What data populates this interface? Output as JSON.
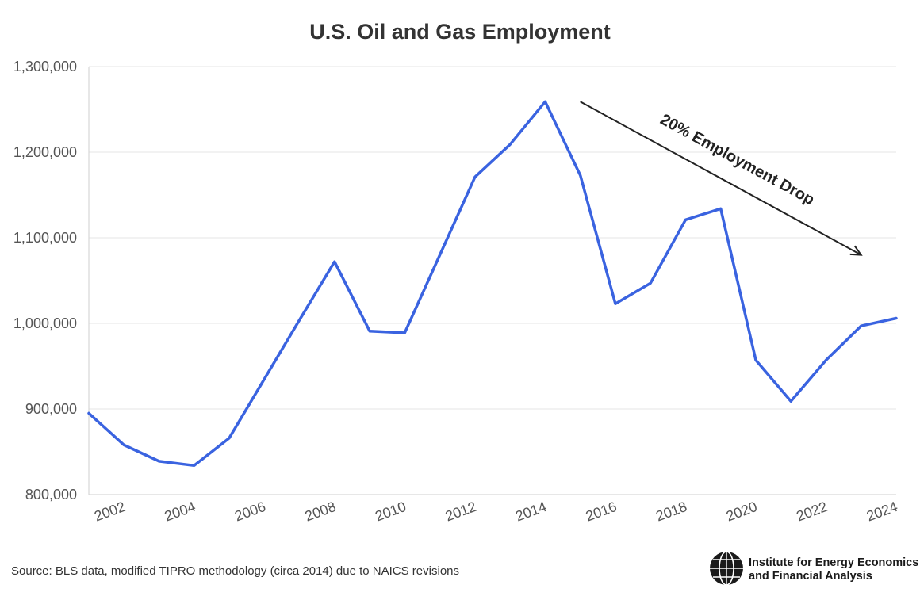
{
  "chart_data": {
    "type": "line",
    "title": "U.S. Oil and Gas Employment",
    "xlabel": "",
    "ylabel": "",
    "x": [
      2001,
      2002,
      2003,
      2004,
      2005,
      2006,
      2007,
      2008,
      2009,
      2010,
      2011,
      2012,
      2013,
      2014,
      2015,
      2016,
      2017,
      2018,
      2019,
      2020,
      2021,
      2022,
      2023,
      2024
    ],
    "series": [
      {
        "name": "",
        "color": "#3a63e0",
        "values": [
          895000,
          858000,
          839000,
          834000,
          866000,
          935000,
          1004000,
          1072000,
          991000,
          989000,
          1080000,
          1171000,
          1209000,
          1259000,
          1173000,
          1023000,
          1047000,
          1121000,
          1134000,
          957000,
          909000,
          957000,
          997000,
          1006000
        ]
      }
    ],
    "xlim": [
      2001,
      2024
    ],
    "ylim": [
      800000,
      1300000
    ],
    "y_ticks": [
      {
        "value": 800000,
        "label": "800,000"
      },
      {
        "value": 900000,
        "label": "900,000"
      },
      {
        "value": 1000000,
        "label": "1,000,000"
      },
      {
        "value": 1100000,
        "label": "1,100,000"
      },
      {
        "value": 1200000,
        "label": "1,200,000"
      },
      {
        "value": 1300000,
        "label": "1,300,000"
      }
    ],
    "x_ticks": [
      {
        "value": 2002,
        "label": "2002"
      },
      {
        "value": 2004,
        "label": "2004"
      },
      {
        "value": 2006,
        "label": "2006"
      },
      {
        "value": 2008,
        "label": "2008"
      },
      {
        "value": 2010,
        "label": "2010"
      },
      {
        "value": 2012,
        "label": "2012"
      },
      {
        "value": 2014,
        "label": "2014"
      },
      {
        "value": 2016,
        "label": "2016"
      },
      {
        "value": 2018,
        "label": "2018"
      },
      {
        "value": 2020,
        "label": "2020"
      },
      {
        "value": 2022,
        "label": "2022"
      },
      {
        "value": 2024,
        "label": "2024"
      }
    ],
    "grid": true,
    "annotation": {
      "text": "20% Employment Drop",
      "arrow_start": {
        "x": 2015,
        "y": 1259000
      },
      "arrow_end": {
        "x": 2023,
        "y": 1080000
      }
    },
    "source": "Source: BLS data, modified TIPRO methodology (circa 2014) due to NAICS revisions",
    "organization": {
      "line1": "Institute for Energy Economics",
      "line2": "and Financial Analysis",
      "icon": "globe-icon"
    }
  }
}
